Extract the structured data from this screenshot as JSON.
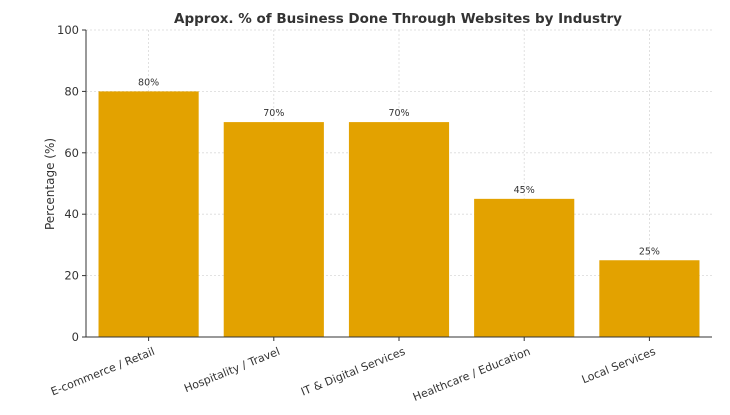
{
  "chart_data": {
    "type": "bar",
    "title": "Approx. % of Business Done Through Websites by Industry",
    "xlabel": "",
    "ylabel": "Percentage (%)",
    "ylim": [
      0,
      100
    ],
    "yticks": [
      0,
      20,
      40,
      60,
      80,
      100
    ],
    "categories": [
      "E-commerce / Retail",
      "Hospitality / Travel",
      "IT & Digital Services",
      "Healthcare / Education",
      "Local Services"
    ],
    "values": [
      80,
      70,
      70,
      45,
      25
    ],
    "data_labels": [
      "80%",
      "70%",
      "70%",
      "45%",
      "25%"
    ],
    "bar_color": "#E3A200",
    "grid": true
  }
}
